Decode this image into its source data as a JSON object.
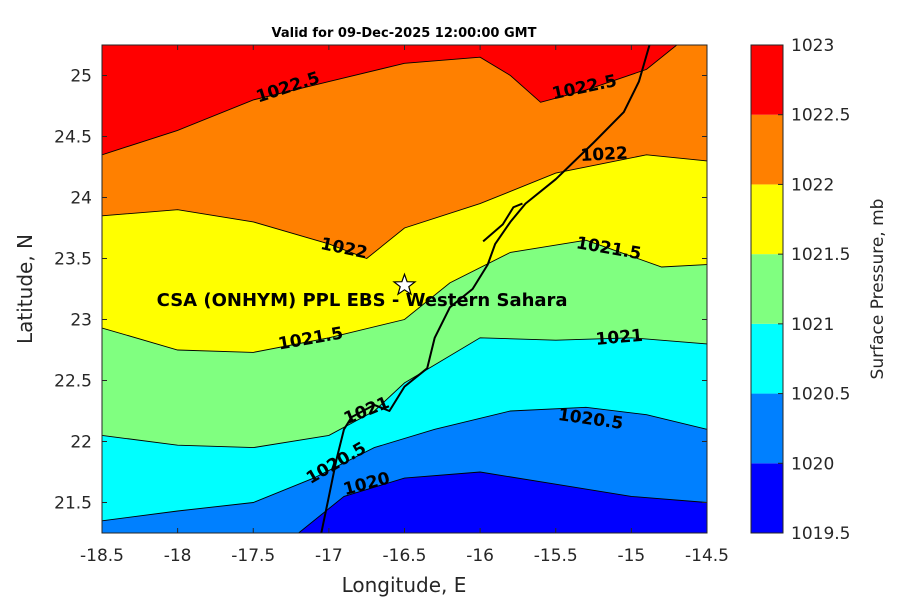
{
  "chart_data": {
    "type": "contour",
    "title": "Valid for 09-Dec-2025 12:00:00 GMT",
    "xlabel": "Longitude, E",
    "ylabel": "Latitude, N",
    "xlim": [
      -18.5,
      -14.5
    ],
    "ylim": [
      21.25,
      25.25
    ],
    "xticks": [
      "-18.5",
      "-18",
      "-17.5",
      "-17",
      "-16.5",
      "-16",
      "-15.5",
      "-15",
      "-14.5"
    ],
    "yticks": [
      "21.5",
      "22",
      "22.5",
      "23",
      "23.5",
      "24",
      "24.5",
      "25"
    ],
    "colorbar": {
      "label": "Surface Pressure, mb",
      "levels": [
        1019.5,
        1020,
        1020.5,
        1021,
        1021.5,
        1022,
        1022.5,
        1023
      ],
      "tick_labels": [
        "1019.5",
        "1020",
        "1020.5",
        "1021",
        "1021.5",
        "1022",
        "1022.5",
        "1023"
      ],
      "colors": [
        "#0000ff",
        "#0080ff",
        "#00ffff",
        "#80ff80",
        "#ffff00",
        "#ff8000",
        "#ff0000",
        "#800000"
      ]
    },
    "contours": [
      {
        "level": "1020",
        "label": "1020",
        "points": [
          [
            -17.2,
            21.25
          ],
          [
            -16.9,
            21.55
          ],
          [
            -16.5,
            21.7
          ],
          [
            -16.0,
            21.75
          ],
          [
            -15.5,
            21.65
          ],
          [
            -15.0,
            21.55
          ],
          [
            -14.5,
            21.5
          ]
        ],
        "label_at": [
          -16.75,
          21.65
        ],
        "label_angle": -15
      },
      {
        "level": "1020.5",
        "label": "1020.5",
        "points": [
          [
            -18.5,
            21.35
          ],
          [
            -18.0,
            21.43
          ],
          [
            -17.5,
            21.5
          ],
          [
            -17.1,
            21.7
          ],
          [
            -16.7,
            21.95
          ],
          [
            -16.3,
            22.1
          ],
          [
            -15.8,
            22.25
          ],
          [
            -15.3,
            22.28
          ],
          [
            -14.9,
            22.22
          ],
          [
            -14.5,
            22.1
          ]
        ],
        "label_at": [
          -16.95,
          21.82
        ],
        "label_angle": -30,
        "label2": "1020.5",
        "label2_at": [
          -15.27,
          22.18
        ],
        "label2_angle": 8
      },
      {
        "level": "1021",
        "label": "1021",
        "points": [
          [
            -18.5,
            22.05
          ],
          [
            -18.0,
            21.97
          ],
          [
            -17.5,
            21.95
          ],
          [
            -17.0,
            22.05
          ],
          [
            -16.7,
            22.25
          ],
          [
            -16.5,
            22.48
          ],
          [
            -16.0,
            22.85
          ],
          [
            -15.5,
            22.83
          ],
          [
            -15.0,
            22.85
          ],
          [
            -14.5,
            22.8
          ]
        ],
        "label_at": [
          -16.75,
          22.25
        ],
        "label_angle": -22,
        "label2": "1021",
        "label2_at": [
          -15.08,
          22.85
        ],
        "label2_angle": -5
      },
      {
        "level": "1021.5",
        "label": "1021.5",
        "points": [
          [
            -18.5,
            22.93
          ],
          [
            -18.0,
            22.75
          ],
          [
            -17.5,
            22.73
          ],
          [
            -17.0,
            22.85
          ],
          [
            -16.5,
            23.0
          ],
          [
            -16.2,
            23.3
          ],
          [
            -15.8,
            23.55
          ],
          [
            -15.3,
            23.65
          ],
          [
            -14.8,
            23.43
          ],
          [
            -14.5,
            23.45
          ]
        ],
        "label_at": [
          -17.12,
          22.84
        ],
        "label_angle": -10,
        "label2": "1021.5",
        "label2_at": [
          -15.15,
          23.58
        ],
        "label2_angle": 10
      },
      {
        "level": "1022",
        "label": "1022",
        "points": [
          [
            -18.5,
            23.85
          ],
          [
            -18.0,
            23.9
          ],
          [
            -17.5,
            23.8
          ],
          [
            -17.0,
            23.62
          ],
          [
            -16.75,
            23.5
          ],
          [
            -16.5,
            23.75
          ],
          [
            -16.0,
            23.95
          ],
          [
            -15.5,
            24.2
          ],
          [
            -14.9,
            24.35
          ],
          [
            -14.5,
            24.3
          ]
        ],
        "label_at": [
          -16.9,
          23.58
        ],
        "label_angle": 12,
        "label2": "1022",
        "label2_at": [
          -15.18,
          24.35
        ],
        "label2_angle": -3
      },
      {
        "level": "1022.5",
        "label": "1022.5",
        "points": [
          [
            -18.5,
            24.35
          ],
          [
            -18.0,
            24.55
          ],
          [
            -17.5,
            24.8
          ],
          [
            -17.0,
            24.95
          ],
          [
            -16.5,
            25.1
          ],
          [
            -16.0,
            25.15
          ],
          [
            -15.8,
            25.0
          ],
          [
            -15.6,
            24.78
          ],
          [
            -15.3,
            24.88
          ],
          [
            -14.9,
            25.05
          ],
          [
            -14.7,
            25.25
          ]
        ],
        "label_at": [
          -17.27,
          24.9
        ],
        "label_angle": -18,
        "label2": "1022.5",
        "label2_at": [
          -15.31,
          24.9
        ],
        "label2_angle": -12
      }
    ],
    "coastline": [
      [
        -17.05,
        21.25
      ],
      [
        -17.0,
        21.55
      ],
      [
        -16.95,
        21.85
      ],
      [
        -16.9,
        22.1
      ],
      [
        -16.85,
        22.2
      ],
      [
        -16.7,
        22.3
      ],
      [
        -16.6,
        22.25
      ],
      [
        -16.5,
        22.45
      ],
      [
        -16.35,
        22.6
      ],
      [
        -16.3,
        22.85
      ],
      [
        -16.2,
        23.1
      ],
      [
        -16.05,
        23.25
      ],
      [
        -15.95,
        23.45
      ],
      [
        -15.9,
        23.62
      ],
      [
        -15.8,
        23.8
      ],
      [
        -15.7,
        23.95
      ],
      [
        -15.5,
        24.15
      ],
      [
        -15.25,
        24.45
      ],
      [
        -15.05,
        24.7
      ],
      [
        -14.95,
        24.95
      ],
      [
        -14.88,
        25.25
      ]
    ],
    "site": {
      "name": "CSA (ONHYM) PPL EBS  - Western Sahara",
      "lon": -16.5,
      "lat": 23.28,
      "marker": "star-icon"
    }
  }
}
